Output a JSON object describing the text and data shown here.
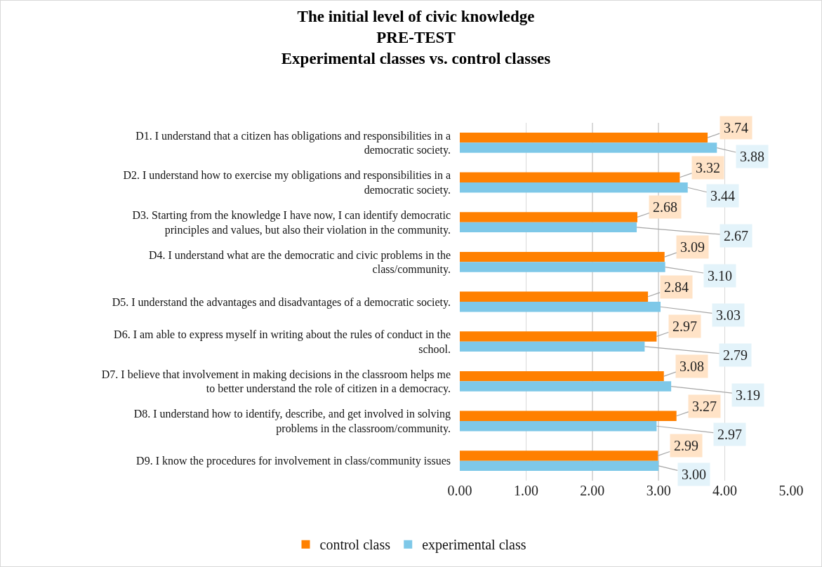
{
  "chart_data": {
    "type": "bar",
    "orientation": "horizontal",
    "title": "The initial level of civic knowledge\nPRE-TEST\nExperimental classes vs. control classes",
    "categories": [
      "D1. I understand that a citizen has obligations and responsibilities in a democratic society.",
      "D2. I understand how to exercise my obligations and responsibilities in a democratic society.",
      "D3. Starting from the knowledge I have now, I can identify democratic principles and values, but also their violation in the community.",
      "D4. I understand what are the democratic and civic problems in the class/community.",
      "D5. I understand the advantages and disadvantages of a democratic society.",
      "D6. I am able to express myself in writing about the rules of conduct in the school.",
      "D7. I believe that involvement in making decisions in the classroom helps me to better understand the role of citizen in a democracy.",
      "D8. I understand how to identify, describe, and get involved in solving problems in the classroom/community.",
      "D9. I know the procedures for involvement in class/community issues"
    ],
    "series": [
      {
        "name": "control class",
        "color": "#ff8000",
        "values": [
          3.74,
          3.32,
          2.68,
          3.09,
          2.84,
          2.97,
          3.08,
          3.27,
          2.99
        ],
        "value_labels": [
          "3.74",
          "3.32",
          "2.68",
          "3.09",
          "2.84",
          "2.97",
          "3.08",
          "3.27",
          "2.99"
        ]
      },
      {
        "name": "experimental class",
        "color": "#7ec8e8",
        "values": [
          3.88,
          3.44,
          2.67,
          3.1,
          3.03,
          2.79,
          3.19,
          2.97,
          3.0
        ],
        "value_labels": [
          "3.88",
          "3.44",
          "2.67",
          "3.10",
          "3.03",
          "2.79",
          "3.19",
          "2.97",
          "3.00"
        ]
      }
    ],
    "xlim": [
      0,
      5
    ],
    "xticks": [
      {
        "value": 0,
        "label": "0.00"
      },
      {
        "value": 1,
        "label": "1.00"
      },
      {
        "value": 2,
        "label": "2.00"
      },
      {
        "value": 3,
        "label": "3.00"
      },
      {
        "value": 4,
        "label": "4.00"
      },
      {
        "value": 5,
        "label": "5.00"
      }
    ],
    "grid": "x",
    "legend": "bottom"
  }
}
